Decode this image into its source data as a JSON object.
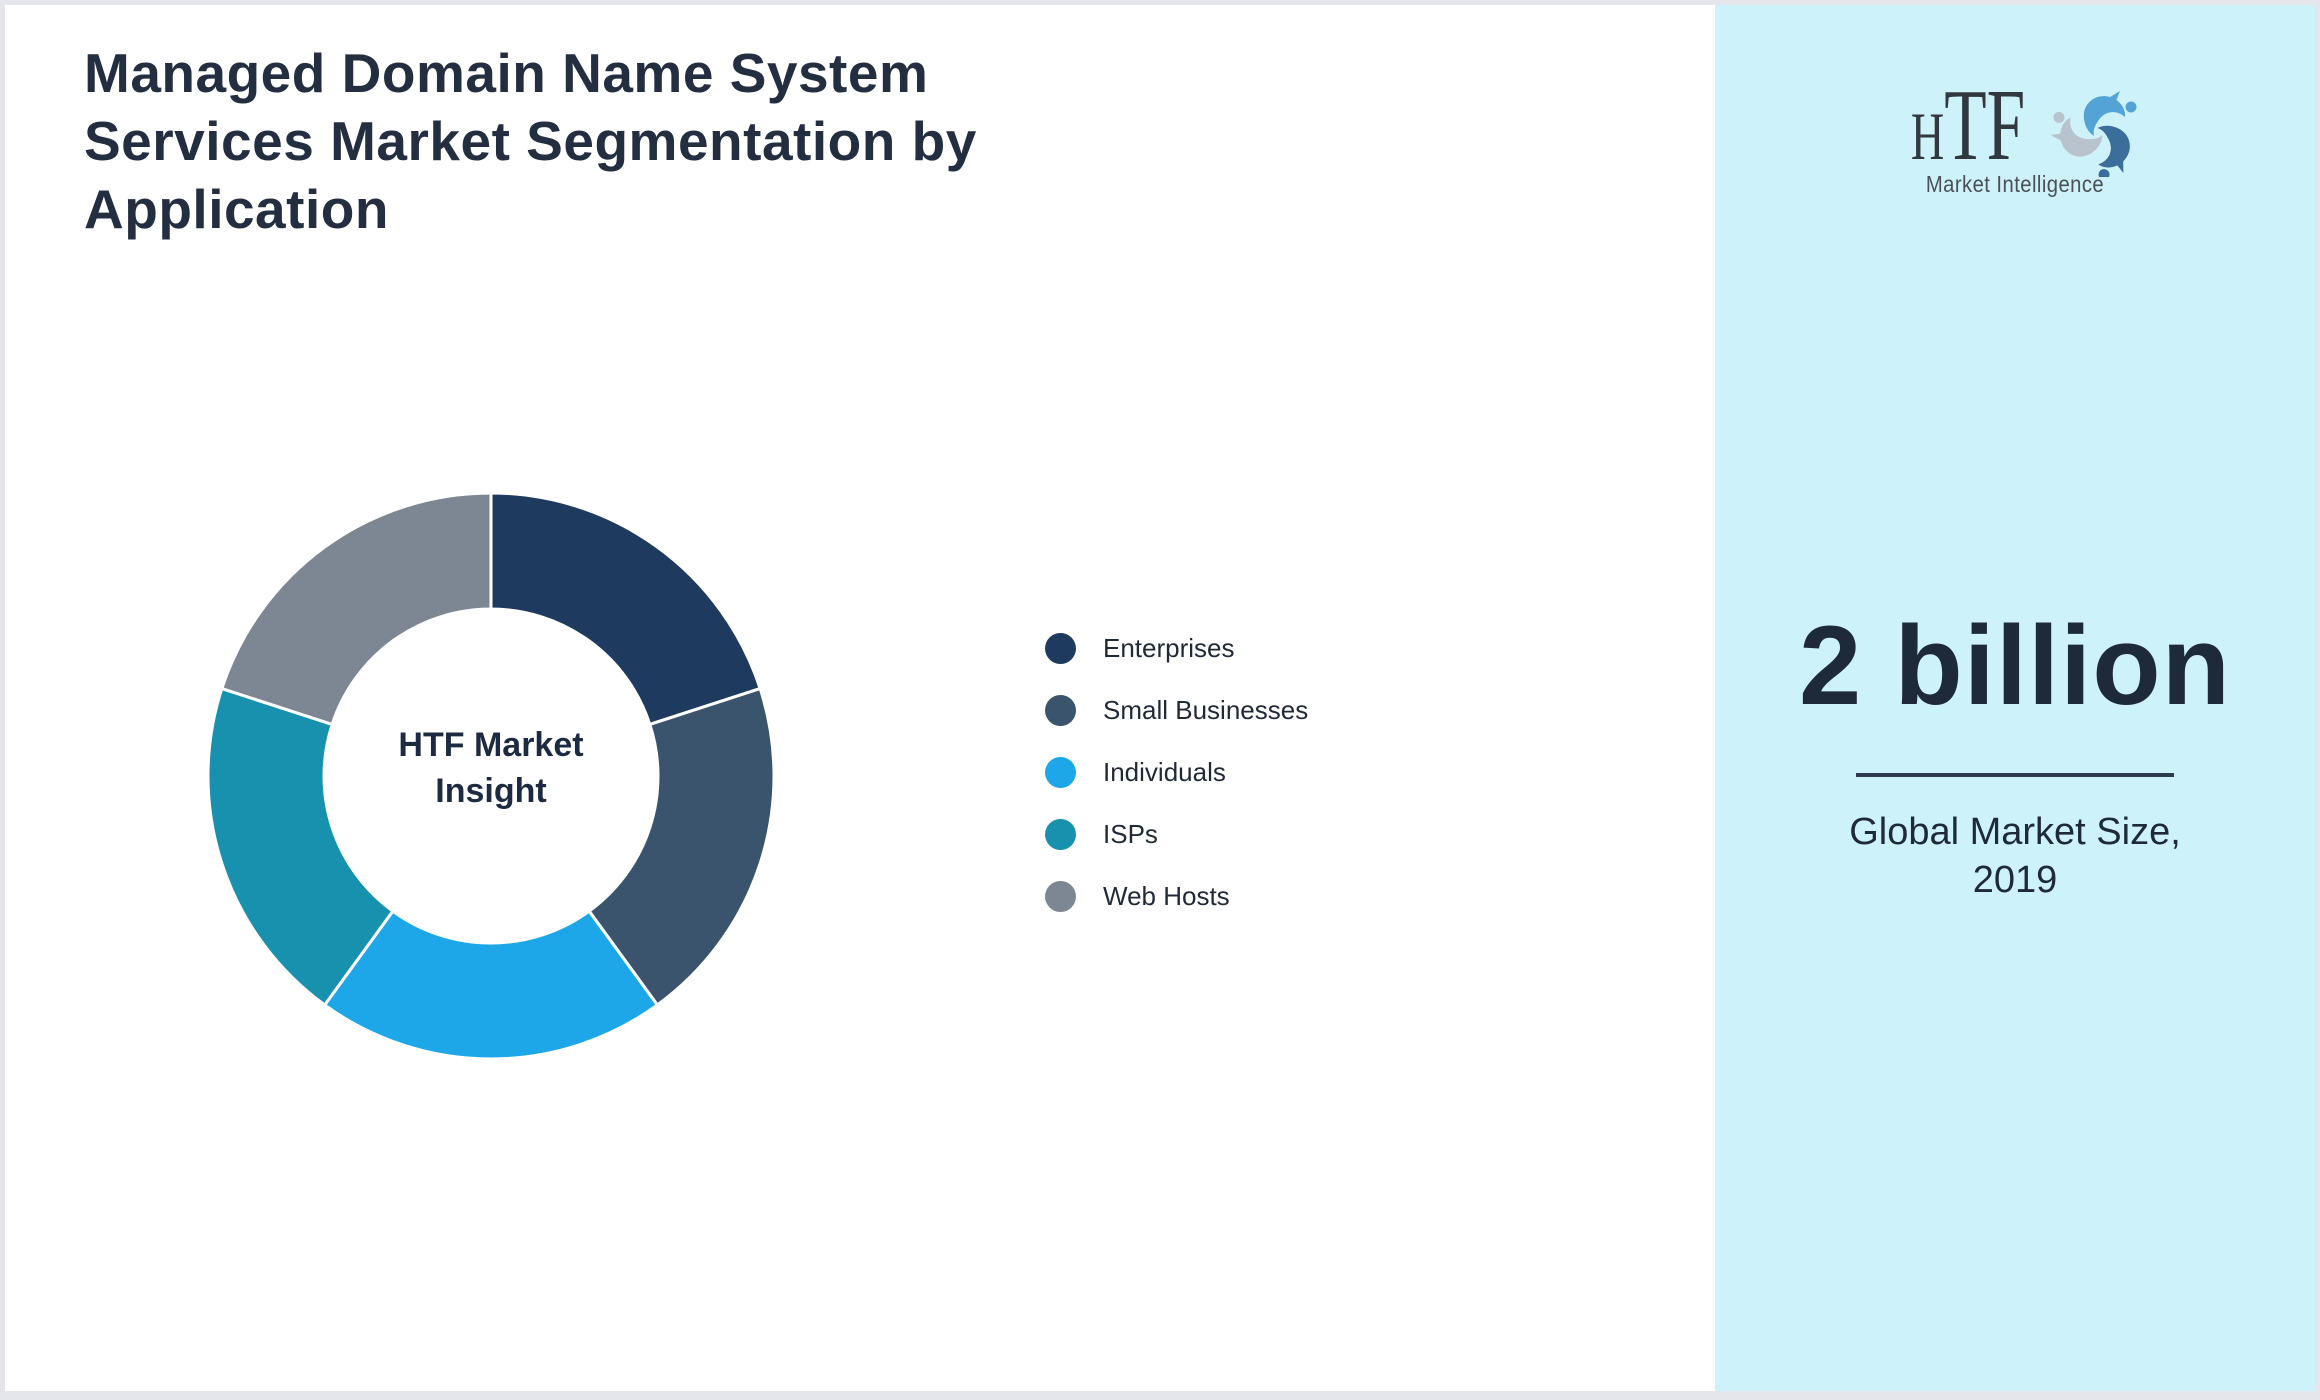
{
  "page": {
    "background": "#FFFFFF",
    "border_color": "#E4E6EB",
    "title_lines": [
      "Managed Domain Name System",
      "Services Market Segmentation by",
      "Application"
    ]
  },
  "chart_data": {
    "type": "pie",
    "subtype": "donut",
    "title": "Managed Domain Name System Services Market Segmentation by Application",
    "center_label": "HTF Market Insight",
    "categories": [
      "Enterprises",
      "Small Businesses",
      "Individuals",
      "ISPs",
      "Web Hosts"
    ],
    "values": [
      20,
      20,
      20,
      20,
      20
    ],
    "value_unit": "percent share (visual estimate; all five slices equal)",
    "colors": [
      "#1F3A5F",
      "#3A546E",
      "#1DA7E9",
      "#1791AE",
      "#7D8794"
    ],
    "start_angle_deg": 0,
    "direction": "clockwise",
    "inner_radius_ratio": 0.59,
    "separator_color": "#FFFFFF",
    "legend_position": "right"
  },
  "side_panel": {
    "background": "#CEF2FA",
    "logo": {
      "abbr_h": "H",
      "abbr_tf": "TF",
      "subtitle": "Market Intelligence",
      "mark_colors": [
        "#54A3D6",
        "#3C6E9B",
        "#B9C3CD"
      ]
    },
    "stat_value": "2 billion",
    "caption_lines": [
      "Global Market Size,",
      "2019"
    ]
  }
}
